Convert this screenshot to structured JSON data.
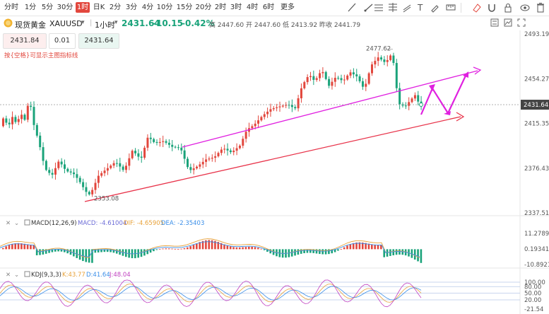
{
  "toolbar": {
    "timeframes": [
      "分时",
      "1分",
      "5分",
      "30分",
      "1时",
      "日K",
      "2分",
      "3分",
      "4分",
      "10分",
      "15分",
      "20分",
      "2时",
      "3时",
      "4时",
      "6时",
      "更多"
    ],
    "active": "1时",
    "icons": [
      "draw-line-icon",
      "ray-icon",
      "horizontal-lines-icon",
      "fibonacci-icon",
      "channel-icon",
      "text-icon",
      "brush-icon",
      "measure-icon",
      "eraser-icon",
      "magnet-icon",
      "lock-icon",
      "eye-icon",
      "delete-icon"
    ]
  },
  "info": {
    "symbol_name": "现货黄金",
    "symbol_code": "XAUUSD",
    "interval": "1小时",
    "price": "2431.64",
    "change": "-10.15",
    "change_pct": "-0.42%",
    "high_label": "高",
    "high": "2447.60",
    "open_label": "开",
    "open": "2447.60",
    "low_label": "低",
    "low": "2413.92",
    "prev_label": "昨收",
    "prev": "2441.79"
  },
  "trade": {
    "sell": "2431.84",
    "lot": "0.01",
    "buy": "2431.64",
    "hint": "按{空格}可显示主图指标线"
  },
  "price_axis": {
    "labels": [
      "2493.19",
      "2454.27",
      "2415.35",
      "2376.43",
      "2337.51"
    ],
    "current": "2431.64"
  },
  "annotations": {
    "high_mark": "2477.62",
    "low_mark": "2353.08"
  },
  "macd": {
    "title": "MACD(12,26,9)",
    "macd_text": "MACD: -4.61004",
    "dif_text": "DIF: -4.65905",
    "dea_text": "DEA: -2.35403",
    "axis": [
      "11.27895",
      "0.19341",
      "-10.89212"
    ]
  },
  "kdj": {
    "title": "KDJ(9,3,3)",
    "k_text": "K:43.77",
    "d_text": "D:41.64",
    "j_text": "J:48.04",
    "axis": [
      "100.00",
      "80.00",
      "50.00",
      "20.00",
      "-21.54"
    ]
  },
  "colors": {
    "up": "#e2473d",
    "down": "#1aa37a",
    "magenta": "#e020e0",
    "red_line": "#e8334a",
    "current_tag": "#444444"
  }
}
